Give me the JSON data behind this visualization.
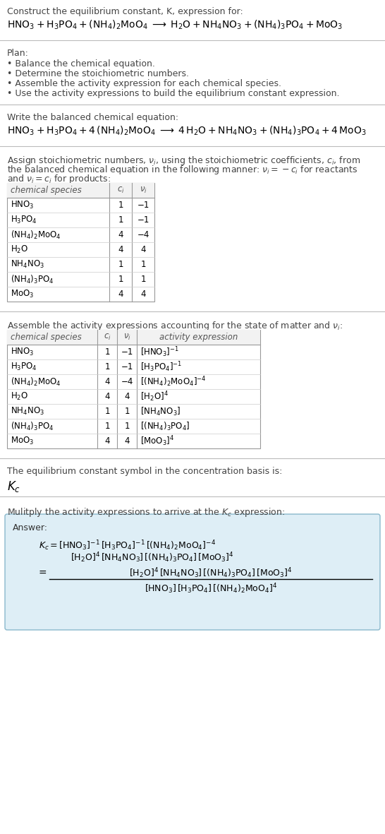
{
  "title_line1": "Construct the equilibrium constant, K, expression for:",
  "plan_header": "Plan:",
  "plan_items": [
    "• Balance the chemical equation.",
    "• Determine the stoichiometric numbers.",
    "• Assemble the activity expression for each chemical species.",
    "• Use the activity expressions to build the equilibrium constant expression."
  ],
  "balanced_header": "Write the balanced chemical equation:",
  "kc_header": "The equilibrium constant symbol in the concentration basis is:",
  "multiply_header": "Mulitply the activity expressions to arrive at the $K_c$ expression:",
  "table1_rows": [
    [
      "HNO_3",
      "1",
      "−1"
    ],
    [
      "H_3PO_4",
      "1",
      "−1"
    ],
    [
      "(NH_4)_2MoO_4",
      "4",
      "−4"
    ],
    [
      "H_2O",
      "4",
      "4"
    ],
    [
      "NH_4NO_3",
      "1",
      "1"
    ],
    [
      "(NH_4)_3PO_4",
      "1",
      "1"
    ],
    [
      "MoO_3",
      "4",
      "4"
    ]
  ],
  "table2_rows": [
    [
      "HNO_3",
      "1",
      "−1",
      "[HNO_3]^{-1}"
    ],
    [
      "H_3PO_4",
      "1",
      "−1",
      "[H_3PO_4]^{-1}"
    ],
    [
      "(NH_4)_2MoO_4",
      "4",
      "−4",
      "[(NH_4)_2MoO_4]^{-4}"
    ],
    [
      "H_2O",
      "4",
      "4",
      "[H_2O]^4"
    ],
    [
      "NH_4NO_3",
      "1",
      "1",
      "[NH_4NO_3]"
    ],
    [
      "(NH_4)_3PO_4",
      "1",
      "1",
      "[(NH_4)_3PO_4]"
    ],
    [
      "MoO_3",
      "4",
      "4",
      "[MoO_3]^4"
    ]
  ],
  "answer_box_color": "#deeef6",
  "answer_box_border": "#8ab8cc",
  "bg_color": "#ffffff",
  "text_color": "#000000"
}
